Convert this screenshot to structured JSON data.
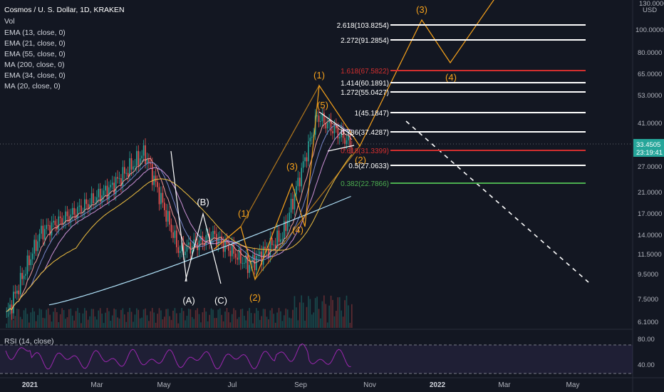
{
  "header": {
    "title": "Cosmos / U. S. Dollar, 1D, KRAKEN",
    "indicators": [
      "Vol",
      "EMA (13, close, 0)",
      "EMA (21, close, 0)",
      "EMA (55, close, 0)",
      "MA (200, close, 0)",
      "EMA (34, close, 0)",
      "MA (20, close, 0)"
    ]
  },
  "price_scale": {
    "unit": "USD",
    "ticks": [
      "130.0000",
      "100.0000",
      "80.0000",
      "65.0000",
      "53.0000",
      "41.0000",
      "33.4505",
      "27.0000",
      "21.0000",
      "17.0000",
      "14.0000",
      "11.5000",
      "9.5000",
      "7.5000",
      "6.1000"
    ],
    "last_price": "33.4505",
    "countdown": "23:19:41"
  },
  "rsi": {
    "label": "RSI (14, close)",
    "ticks": [
      "80.00",
      "40.00"
    ]
  },
  "time_axis": [
    "2021",
    "Mar",
    "May",
    "Jul",
    "Sep",
    "Nov",
    "2022",
    "Mar",
    "May"
  ],
  "fib_levels": [
    {
      "label": "2.618(103.8254)",
      "color": "#ffffff"
    },
    {
      "label": "2.272(91.2854)",
      "color": "#ffffff"
    },
    {
      "label": "1.618(67.5822)",
      "color": "#d32f2f"
    },
    {
      "label": "1.414(60.1891)",
      "color": "#ffffff"
    },
    {
      "label": "1.272(55.0427)",
      "color": "#ffffff"
    },
    {
      "label": "1(45.1847)",
      "color": "#ffffff"
    },
    {
      "label": "0.786(37.4287)",
      "color": "#ffffff"
    },
    {
      "label": "0.618(31.3399)",
      "color": "#d32f2f"
    },
    {
      "label": "0.5(27.0633)",
      "color": "#ffffff"
    },
    {
      "label": "0.382(22.7866)",
      "color": "#4caf50"
    }
  ],
  "wave_labels": {
    "corrective": [
      "(A)",
      "(B)",
      "(C)"
    ],
    "impulse_past": [
      "(1)",
      "(2)",
      "(3)",
      "(4)",
      "(5)"
    ],
    "impulse_major": [
      "(1)",
      "(2)"
    ],
    "projected": [
      "(3)",
      "(4)"
    ]
  },
  "colors": {
    "background": "#131722",
    "bull": "#26a69a",
    "bear": "#ef5350",
    "wave": "#f7a21b",
    "fib_white": "#ffffff",
    "fib_red": "#d32f2f",
    "fib_green": "#4caf50",
    "rsi_line": "#9c27b0",
    "last_price_bg": "#26a69a",
    "ma200": "#b3e5fc",
    "ema55": "#f0c040"
  },
  "chart_data": {
    "type": "candlestick",
    "title": "Cosmos / U. S. Dollar, 1D, KRAKEN",
    "approx_closes": [
      {
        "date": "2021-01",
        "value": 6.5
      },
      {
        "date": "2021-02",
        "value": 14.5
      },
      {
        "date": "2021-03",
        "value": 17.5
      },
      {
        "date": "2021-04",
        "value": 22.0
      },
      {
        "date": "2021-05-05",
        "value": 31.0
      },
      {
        "date": "2021-05-20",
        "value": 12.0
      },
      {
        "date": "2021-06",
        "value": 14.0
      },
      {
        "date": "2021-07-01",
        "value": 10.5
      },
      {
        "date": "2021-08",
        "value": 14.0
      },
      {
        "date": "2021-09-07",
        "value": 44.0
      },
      {
        "date": "2021-10-08",
        "value": 33.45
      }
    ],
    "last_close": 33.4505,
    "ylim": [
      6.1,
      130
    ],
    "scale": "log"
  }
}
